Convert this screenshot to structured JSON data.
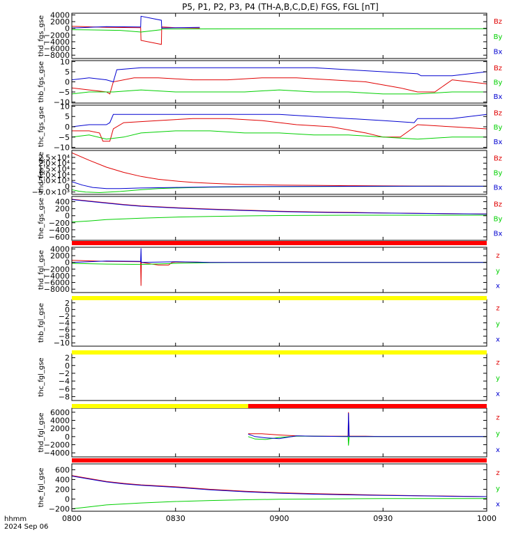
{
  "title": "P5, P1, P2, P3, P4 (TH-A,B,C,D,E) FGS, FGL [nT]",
  "footer": {
    "unit": "hhmm",
    "date": "2024 Sep 06"
  },
  "colors": {
    "x": "#0000d0",
    "y": "#00d000",
    "z": "#e00000",
    "bar_red": "#ff0000",
    "bar_yellow": "#ffff00"
  },
  "chart_data": [
    {
      "type": "line",
      "name": "thd_fgs_gse",
      "ylabel": "thd_fgs_gse",
      "ylim": [
        -9000,
        4500
      ],
      "yticks": [
        4000,
        2000,
        0,
        -2000,
        -4000,
        -6000,
        -8000
      ],
      "yticklabels": [
        "4000",
        "2000",
        "0",
        "−2000",
        "−4000",
        "−6000",
        "−8000"
      ],
      "legend": [
        "Bz",
        "By",
        "Bx"
      ],
      "series": [
        {
          "name": "Bz",
          "x": [
            0,
            10,
            19.9,
            20,
            25.9,
            26,
            30,
            37
          ],
          "y": [
            600,
            300,
            200,
            -3600,
            -4800,
            400,
            200,
            100
          ]
        },
        {
          "name": "By",
          "x": [
            0,
            8,
            14,
            20,
            25.9,
            26,
            30,
            40,
            60,
            100,
            120
          ],
          "y": [
            -400,
            -500,
            -600,
            -1100,
            -400,
            -200,
            -200,
            -180,
            -160,
            -140,
            -120
          ]
        },
        {
          "name": "Bx",
          "x": [
            0,
            10,
            19.9,
            20,
            25.9,
            26,
            37
          ],
          "y": [
            100,
            500,
            400,
            3600,
            2400,
            100,
            300
          ]
        }
      ]
    },
    {
      "type": "line",
      "name": "thb_fgs_gse",
      "ylabel": "thb_fgs_gse",
      "ylim": [
        -10.5,
        10.5
      ],
      "yticks": [
        10,
        5,
        0,
        -5,
        -10
      ],
      "yticklabels": [
        "10",
        "5",
        "0",
        "−5",
        "−10"
      ],
      "legend": [
        "Bz",
        "By",
        "Bx"
      ],
      "series": [
        {
          "name": "Bz",
          "x": [
            0,
            5,
            10,
            11,
            12,
            18,
            25,
            35,
            45,
            55,
            65,
            75,
            85,
            95,
            100,
            105,
            110,
            115,
            120
          ],
          "y": [
            -3,
            -4,
            -5,
            -6,
            0,
            2,
            2,
            1,
            1,
            2,
            2,
            1,
            0,
            -3,
            -5,
            -5,
            1,
            0,
            -1
          ]
        },
        {
          "name": "By",
          "x": [
            0,
            5,
            10,
            12,
            20,
            30,
            40,
            50,
            60,
            70,
            80,
            90,
            100,
            110,
            120
          ],
          "y": [
            -6,
            -5,
            -5,
            -5,
            -4,
            -5,
            -5,
            -5,
            -4,
            -5,
            -5,
            -6,
            -6,
            -5,
            -5
          ]
        },
        {
          "name": "Bx",
          "x": [
            0,
            5,
            10,
            12,
            13,
            20,
            30,
            40,
            50,
            60,
            70,
            80,
            90,
            100,
            101,
            110,
            120
          ],
          "y": [
            1,
            2,
            1,
            0,
            6,
            7,
            7,
            7,
            7,
            7,
            7,
            6,
            5,
            4,
            3,
            3,
            5
          ]
        }
      ]
    },
    {
      "type": "line",
      "name": "thc_fgs_gse",
      "ylabel": "thc_fgs_gse",
      "ylim": [
        -10.5,
        10.5
      ],
      "yticks": [
        10,
        5,
        0,
        -5,
        -10
      ],
      "yticklabels": [
        "10",
        "5",
        "0",
        "−5",
        "−10"
      ],
      "legend": [
        "Bz",
        "By",
        "Bx"
      ],
      "series": [
        {
          "name": "Bz",
          "x": [
            0,
            5,
            8,
            9,
            11,
            12,
            15,
            25,
            35,
            45,
            55,
            65,
            75,
            85,
            90,
            95,
            100,
            110,
            120
          ],
          "y": [
            -2,
            -2,
            -3,
            -7,
            -7,
            -1,
            2,
            3,
            4,
            4,
            3,
            1,
            0,
            -3,
            -5,
            -5,
            1,
            0,
            -1
          ]
        },
        {
          "name": "By",
          "x": [
            0,
            5,
            10,
            15,
            20,
            30,
            40,
            50,
            60,
            70,
            80,
            90,
            100,
            110,
            120
          ],
          "y": [
            -5,
            -4,
            -6,
            -5,
            -3,
            -2,
            -2,
            -3,
            -3,
            -4,
            -4,
            -5,
            -6,
            -5,
            -5
          ]
        },
        {
          "name": "Bx",
          "x": [
            0,
            5,
            10,
            11,
            12,
            20,
            30,
            40,
            50,
            60,
            70,
            80,
            90,
            99,
            100,
            110,
            120
          ],
          "y": [
            0,
            1,
            1,
            2,
            6,
            6,
            6,
            6,
            6,
            6,
            5,
            4,
            3,
            2,
            4,
            4,
            6
          ]
        }
      ]
    },
    {
      "type": "line",
      "name": "thd_fgs_gse",
      "ylabel": "thd_fgs_gse",
      "ylim": [
        -7000,
        31000
      ],
      "yticks": [
        25000,
        20000,
        15000,
        10000,
        5000,
        0,
        -5000
      ],
      "yticklabels": [
        "2.5×10⁴",
        "2.0×10⁴",
        "1.5×10⁴",
        "1.0×10⁴",
        "5.0×10³",
        "0",
        "−5.0×10³"
      ],
      "legend": [
        "Bz",
        "By",
        "Bx"
      ],
      "series": [
        {
          "name": "Bz",
          "x": [
            0,
            5,
            10,
            15,
            20,
            25,
            30,
            35,
            40,
            45,
            50,
            60,
            70,
            80,
            90,
            100,
            110,
            120
          ],
          "y": [
            29000,
            22500,
            16500,
            12000,
            8500,
            6000,
            4500,
            3300,
            2600,
            2000,
            1500,
            1000,
            800,
            500,
            300,
            200,
            100,
            0
          ]
        },
        {
          "name": "By",
          "x": [
            0,
            2,
            4,
            8,
            14,
            20,
            25,
            30,
            40,
            50,
            60,
            70,
            80,
            90,
            100,
            110,
            120
          ],
          "y": [
            -3000,
            -4300,
            -5000,
            -5500,
            -4500,
            -3000,
            -2000,
            -1500,
            -800,
            -500,
            -300,
            -200,
            -100,
            -100,
            0,
            0,
            0
          ]
        },
        {
          "name": "Bx",
          "x": [
            0,
            3,
            6,
            10,
            14,
            20,
            30,
            40,
            50,
            60,
            70,
            80,
            90,
            100,
            110,
            120
          ],
          "y": [
            4000,
            1000,
            -1000,
            -2000,
            -2000,
            -1500,
            -1000,
            -600,
            -300,
            -200,
            -100,
            -50,
            0,
            0,
            0,
            0
          ]
        }
      ]
    },
    {
      "type": "line",
      "name": "the_fgs_gse",
      "ylabel": "the_fgs_gse",
      "ylim": [
        -700,
        550
      ],
      "yticks": [
        400,
        200,
        0,
        -200,
        -400,
        -600
      ],
      "yticklabels": [
        "400",
        "200",
        "0",
        "−200",
        "−400",
        "−600"
      ],
      "legend": [
        "Bz",
        "By",
        "Bx"
      ],
      "series": [
        {
          "name": "Bz",
          "x": [
            0,
            5,
            10,
            15,
            20,
            30,
            40,
            50,
            60,
            70,
            80,
            90,
            100,
            110,
            120
          ],
          "y": [
            470,
            420,
            370,
            320,
            280,
            230,
            190,
            160,
            130,
            110,
            95,
            80,
            70,
            60,
            50
          ]
        },
        {
          "name": "By",
          "x": [
            0,
            5,
            10,
            20,
            30,
            40,
            50,
            60,
            70,
            80,
            90,
            100,
            110,
            120
          ],
          "y": [
            -180,
            -150,
            -110,
            -70,
            -40,
            -20,
            -5,
            5,
            10,
            15,
            15,
            15,
            15,
            15
          ]
        },
        {
          "name": "Bx",
          "x": [
            0,
            5,
            10,
            15,
            20,
            30,
            40,
            50,
            60,
            70,
            80,
            90,
            100,
            110,
            120
          ],
          "y": [
            460,
            410,
            360,
            310,
            270,
            220,
            180,
            150,
            120,
            100,
            85,
            75,
            65,
            55,
            50
          ]
        }
      ]
    },
    {
      "type": "line",
      "name": "thd_fgl_gse",
      "ylabel": "thd_fgl_gse",
      "ylim": [
        -9000,
        4500
      ],
      "yticks": [
        4000,
        2000,
        0,
        -2000,
        -4000,
        -6000,
        -8000
      ],
      "yticklabels": [
        "4000",
        "2000",
        "0",
        "−2000",
        "−4000",
        "−6000",
        "−8000"
      ],
      "legend": [
        "z",
        "y",
        "x"
      ],
      "series": [
        {
          "name": "z",
          "x": [
            0,
            10,
            19.9,
            20,
            20.1,
            25,
            28,
            29,
            30,
            36,
            40,
            60,
            120
          ],
          "y": [
            600,
            300,
            200,
            -7000,
            0,
            -800,
            -800,
            0,
            100,
            100,
            0,
            0,
            0
          ]
        },
        {
          "name": "y",
          "x": [
            0,
            10,
            20,
            30,
            40,
            60,
            120
          ],
          "y": [
            -300,
            -500,
            -600,
            -300,
            -100,
            0,
            0
          ]
        },
        {
          "name": "x",
          "x": [
            0,
            10,
            19.9,
            20,
            20.1,
            30,
            40,
            120
          ],
          "y": [
            0,
            400,
            300,
            4200,
            0,
            200,
            0,
            0
          ]
        }
      ]
    },
    {
      "type": "line",
      "name": "thb_fgl_gse",
      "ylabel": "thb_fgl_gse",
      "ylim": [
        -11,
        3
      ],
      "yticks": [
        2,
        0,
        -2,
        -4,
        -6,
        -8,
        -10
      ],
      "yticklabels": [
        "2",
        "0",
        "−2",
        "−4",
        "−6",
        "−8",
        "−10"
      ],
      "legend": [
        "z",
        "y",
        "x"
      ],
      "series": []
    },
    {
      "type": "line",
      "name": "thc_fgl_gse",
      "ylabel": "thc_fgl_gse",
      "ylim": [
        -9,
        3
      ],
      "yticks": [
        2,
        0,
        -2,
        -4,
        -6,
        -8
      ],
      "yticklabels": [
        "2",
        "0",
        "−2",
        "−4",
        "−6",
        "−8"
      ],
      "legend": [
        "z",
        "y",
        "x"
      ],
      "series": []
    },
    {
      "type": "line",
      "name": "thd_fgl_gse",
      "ylabel": "thd_fgl_gse",
      "ylim": [
        -5000,
        7000
      ],
      "yticks": [
        6000,
        4000,
        2000,
        0,
        -2000,
        -4000
      ],
      "yticklabels": [
        "6000",
        "4000",
        "2000",
        "0",
        "−2000",
        "−4000"
      ],
      "legend": [
        "z",
        "y",
        "x"
      ],
      "series": [
        {
          "name": "z",
          "x": [
            51,
            55,
            60,
            65,
            70,
            79.9,
            80,
            80.2,
            85,
            90,
            120
          ],
          "y": [
            700,
            700,
            400,
            200,
            100,
            100,
            6000,
            100,
            100,
            0,
            0
          ]
        },
        {
          "name": "y",
          "x": [
            51,
            53,
            56,
            60,
            65,
            70,
            79.9,
            80,
            80.2,
            90,
            120
          ],
          "y": [
            0,
            -600,
            -700,
            -200,
            100,
            100,
            0,
            -2200,
            0,
            0,
            0
          ]
        },
        {
          "name": "x",
          "x": [
            51,
            53,
            56,
            60,
            65,
            70,
            79.9,
            80,
            80.2,
            90,
            120
          ],
          "y": [
            600,
            0,
            -300,
            -500,
            200,
            100,
            0,
            5800,
            0,
            0,
            0
          ]
        }
      ]
    },
    {
      "type": "line",
      "name": "the_fgl_gse",
      "ylabel": "the_fgl_gse",
      "ylim": [
        -250,
        720
      ],
      "yticks": [
        600,
        400,
        200,
        0,
        -200
      ],
      "yticklabels": [
        "600",
        "400",
        "200",
        "0",
        "−200"
      ],
      "legend": [
        "z",
        "y",
        "x"
      ],
      "series": [
        {
          "name": "z",
          "x": [
            0,
            5,
            10,
            15,
            20,
            30,
            40,
            50,
            60,
            70,
            80,
            90,
            100,
            110,
            120
          ],
          "y": [
            480,
            420,
            360,
            320,
            290,
            250,
            200,
            160,
            130,
            110,
            95,
            80,
            70,
            60,
            50
          ]
        },
        {
          "name": "y",
          "x": [
            0,
            5,
            10,
            20,
            30,
            40,
            50,
            60,
            70,
            80,
            90,
            100,
            110,
            120
          ],
          "y": [
            -200,
            -160,
            -120,
            -80,
            -50,
            -30,
            -15,
            -5,
            0,
            5,
            10,
            10,
            10,
            10
          ]
        },
        {
          "name": "x",
          "x": [
            0,
            5,
            10,
            15,
            20,
            30,
            40,
            50,
            60,
            70,
            80,
            90,
            100,
            110,
            120
          ],
          "y": [
            470,
            410,
            350,
            310,
            280,
            240,
            190,
            150,
            120,
            100,
            85,
            75,
            65,
            55,
            50
          ]
        }
      ]
    }
  ],
  "status_bars": [
    {
      "segments": [
        {
          "from": 0,
          "to": 120,
          "color": "red"
        }
      ]
    },
    {
      "segments": [
        {
          "from": 0,
          "to": 120,
          "color": "yellow"
        }
      ]
    },
    {
      "segments": [
        {
          "from": 0,
          "to": 120,
          "color": "yellow"
        }
      ]
    },
    {
      "segments": [
        {
          "from": 0,
          "to": 51,
          "color": "yellow"
        },
        {
          "from": 51,
          "to": 120,
          "color": "red"
        }
      ]
    },
    {
      "segments": [
        {
          "from": 0,
          "to": 120,
          "color": "red"
        }
      ]
    }
  ],
  "x_axis": {
    "range_minutes": [
      0,
      120
    ],
    "ticks": [
      0,
      30,
      60,
      90,
      120
    ],
    "ticklabels": [
      "0800",
      "0830",
      "0900",
      "0930",
      "1000"
    ]
  }
}
